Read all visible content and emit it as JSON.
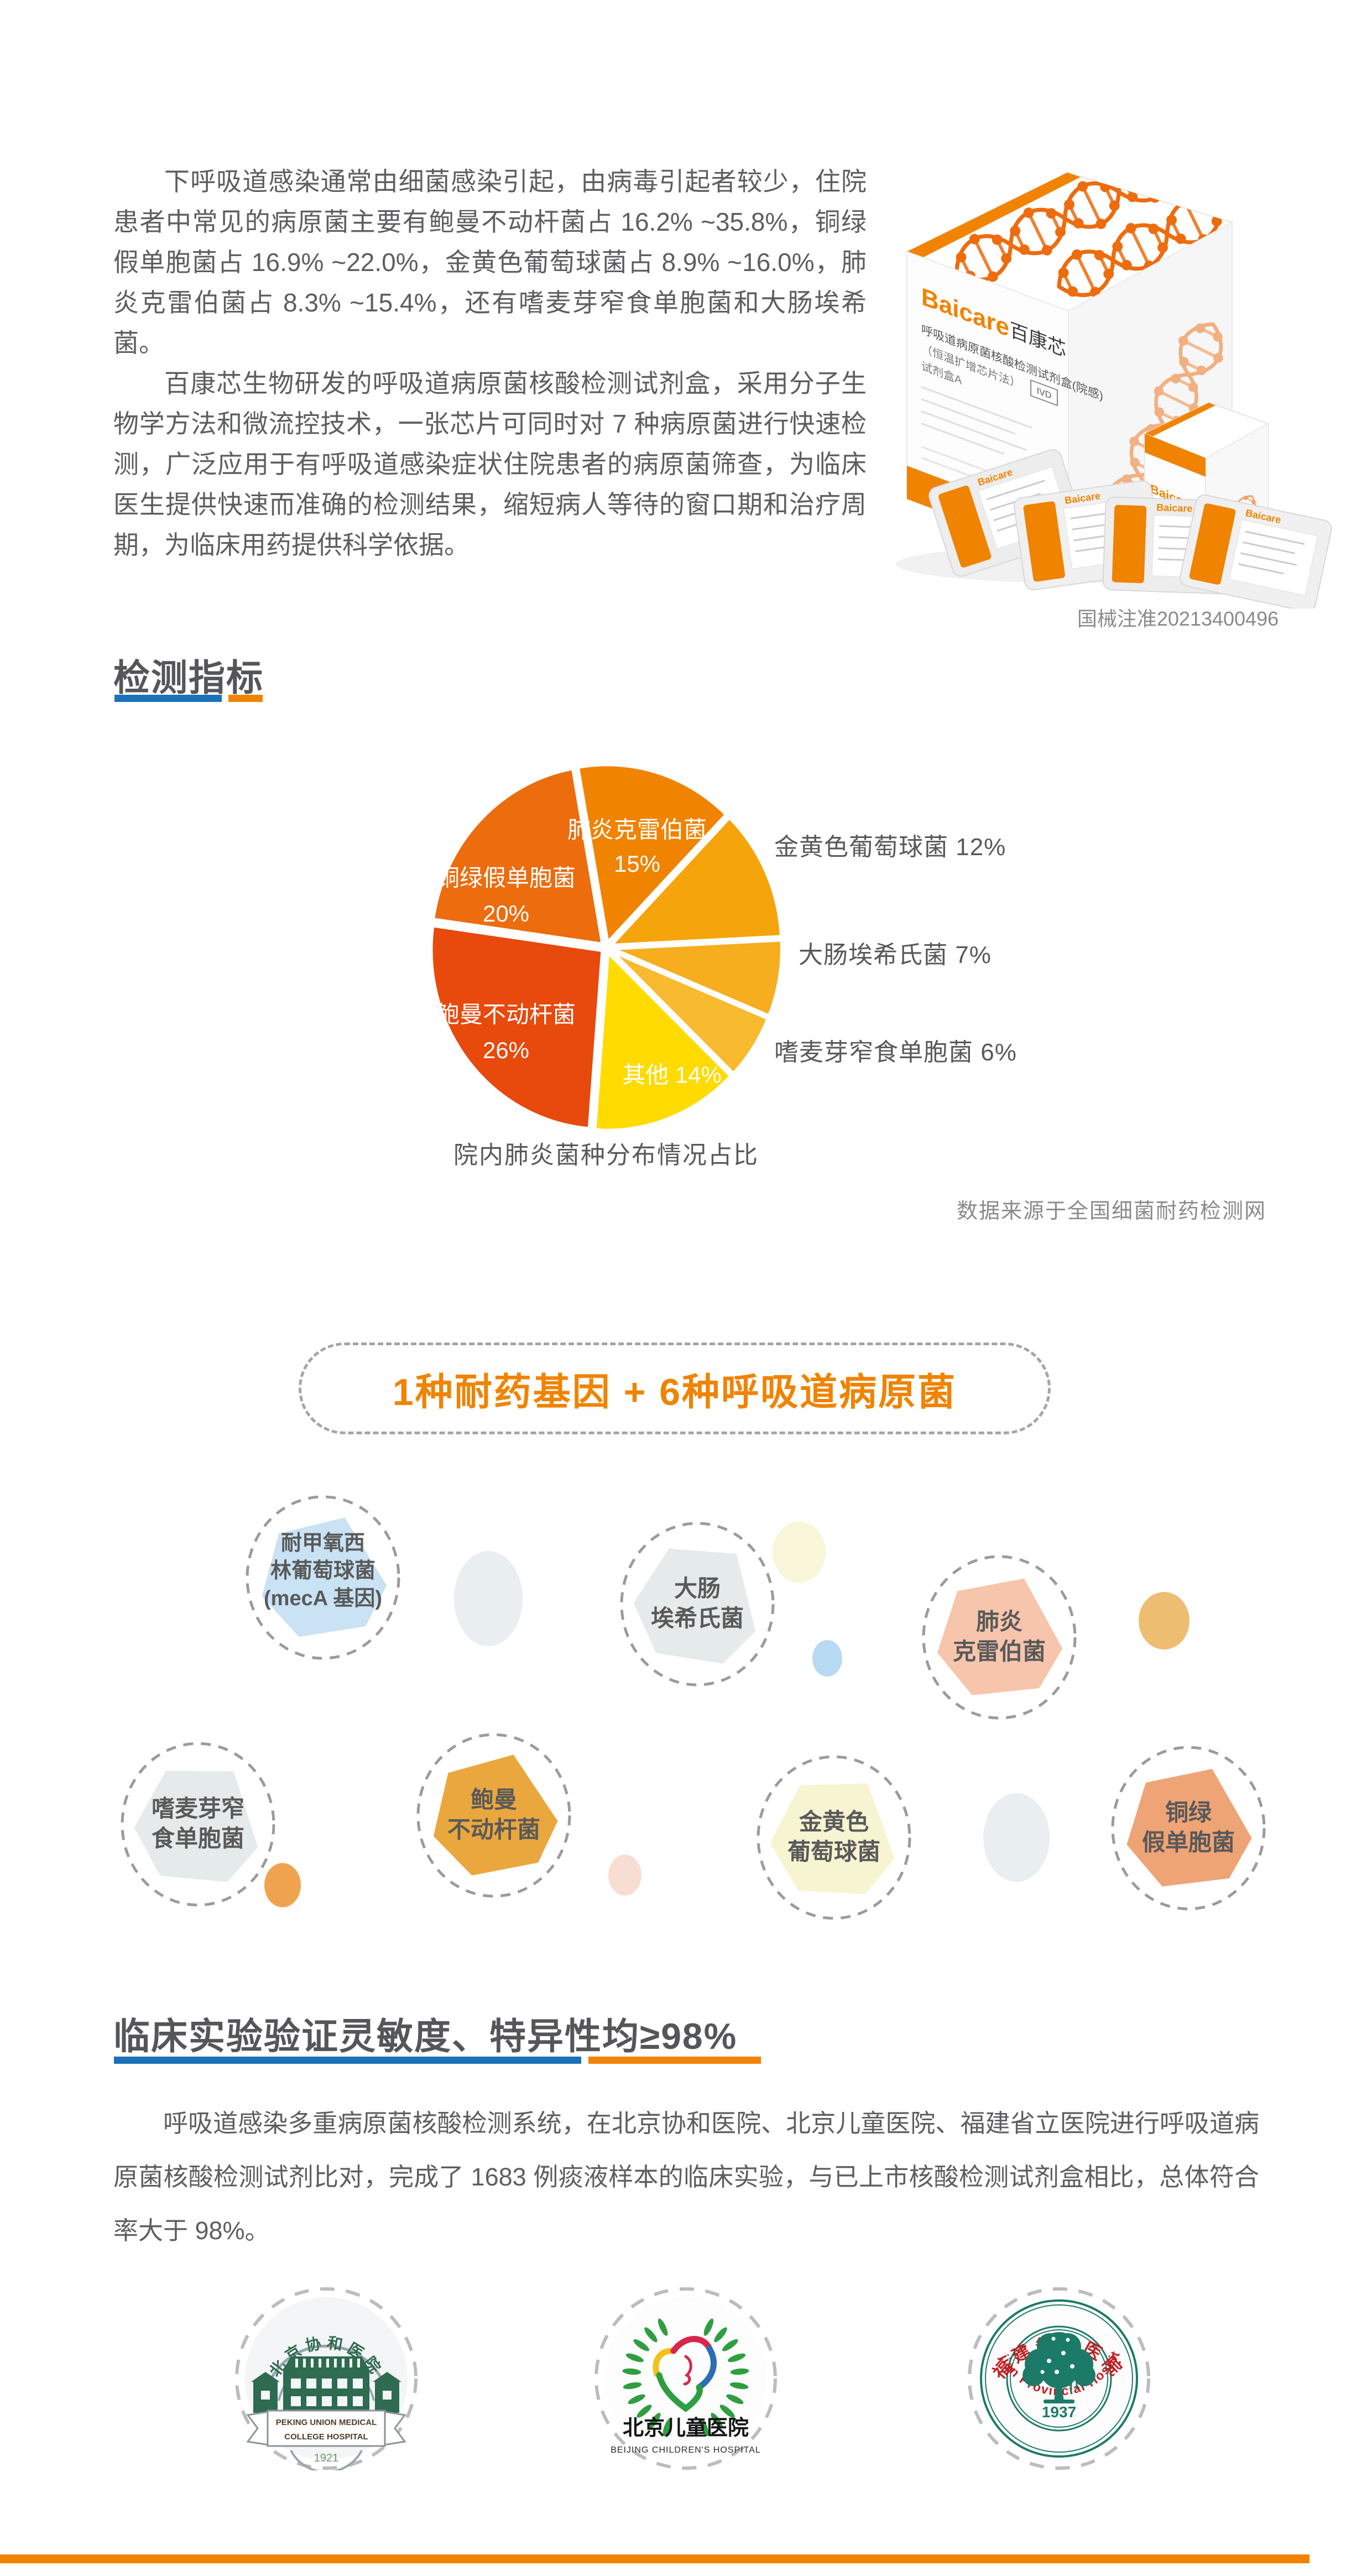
{
  "intro": {
    "p1": "下呼吸道感染通常由细菌感染引起，由病毒引起者较少，住院患者中常见的病原菌主要有鲍曼不动杆菌占 16.2% ~35.8%，铜绿假单胞菌占 16.9% ~22.0%，金黄色葡萄球菌占 8.9% ~16.0%，肺炎克雷伯菌占 8.3% ~15.4%，还有嗜麦芽窄食单胞菌和大肠埃希菌。",
    "p2": "百康芯生物研发的呼吸道病原菌核酸检测试剂盒，采用分子生物学方法和微流控技术，一张芯片可同时对 7 种病原菌进行快速检测，广泛应用于有呼吸道感染症状住院患者的病原菌筛查，为临床医生提供快速而准确的检测结果，缩短病人等待的窗口期和治疗周期，为临床用药提供科学依据。"
  },
  "product": {
    "brand_en": "Baicare",
    "brand_cn": "百康芯",
    "box_title_1": "呼吸道病原菌核酸检测试剂盒(院感)",
    "box_title_2": "（恒温扩增芯片法）",
    "box_title_3": "试剂盒A",
    "ivd_badge": "IVD",
    "registration_no": "国械注准20213400496"
  },
  "section1": {
    "title": "检测指标"
  },
  "chart_data": {
    "type": "pie",
    "title": "院内肺炎菌种分布情况占比",
    "source": "数据来源于全国细菌耐药检测网",
    "start_angle_deg": -10,
    "legend_position": "mixed",
    "slices": [
      {
        "label": "肺炎克雷伯菌",
        "value": 15,
        "color": "#F08300"
      },
      {
        "label": "金黄色葡萄球菌",
        "value": 12,
        "color": "#F5A40B"
      },
      {
        "label": "大肠埃希氏菌",
        "value": 7,
        "color": "#F6AD1E"
      },
      {
        "label": "嗜麦芽窄食单胞菌",
        "value": 6,
        "color": "#F8BA2F"
      },
      {
        "label": "其他",
        "value": 14,
        "color": "#FFDB00"
      },
      {
        "label": "鲍曼不动杆菌",
        "value": 26,
        "color": "#E8490C"
      },
      {
        "label": "铜绿假单胞菌",
        "value": 20,
        "color": "#EC6C0E"
      }
    ]
  },
  "banner": {
    "text": "1种耐药基因 + 6种呼吸道病原菌"
  },
  "pathogens": {
    "hexagons": [
      {
        "id": "meca",
        "lines": [
          "耐甲氧西",
          "林葡萄球菌",
          "(mecA 基因)"
        ],
        "color": "#C9E2F4"
      },
      {
        "id": "ecoli",
        "lines": [
          "大肠",
          "埃希氏菌"
        ],
        "color": "#E5EAEA"
      },
      {
        "id": "kpneumoniae",
        "lines": [
          "肺炎",
          "克雷伯菌"
        ],
        "color": "#F6C5AC"
      },
      {
        "id": "smaltophilia",
        "lines": [
          "嗜麦芽窄",
          "食单胞菌"
        ],
        "color": "#E5EAEA"
      },
      {
        "id": "abaumannii",
        "lines": [
          "鲍曼",
          "不动杆菌"
        ],
        "color": "#EAA73E"
      },
      {
        "id": "saureus",
        "lines": [
          "金黄色",
          "葡萄球菌"
        ],
        "color": "#F7F4D2"
      },
      {
        "id": "paeruginosa",
        "lines": [
          "铜绿",
          "假单胞菌"
        ],
        "color": "#EFA475"
      }
    ],
    "dots": [
      {
        "color": "#E9EEF0"
      },
      {
        "color": "#F8F5D8"
      },
      {
        "color": "#B8D9F2"
      },
      {
        "color": "#EDBE72"
      },
      {
        "color": "#F0A34E"
      },
      {
        "color": "#F8DDD3"
      },
      {
        "color": "#E9EEF0"
      }
    ]
  },
  "section2": {
    "title": "临床实验验证灵敏度、特异性均≥98%",
    "body": "呼吸道感染多重病原菌核酸检测系统，在北京协和医院、北京儿童医院、福建省立医院进行呼吸道病原菌核酸检测试剂比对，完成了 1683 例痰液样本的临床实验，与已上市核酸检测试剂盒相比，总体符合率大于 98%。"
  },
  "hospitals": [
    {
      "cn": "北京协和医院",
      "en_line1": "PEKING UNION MEDICAL",
      "en_line2": "COLLEGE HOSPITAL",
      "year": "1921"
    },
    {
      "cn": "北京儿童医院",
      "en": "BEIJING CHILDREN'S HOSPITAL"
    },
    {
      "cn": "福建省立医院",
      "en": "Fujian Provincial Hospital",
      "year": "1937"
    }
  ],
  "colors": {
    "accent_orange": "#F08300",
    "accent_blue": "#1B72B8",
    "body_text": "#5d5e60",
    "heading_text": "#55565a"
  }
}
